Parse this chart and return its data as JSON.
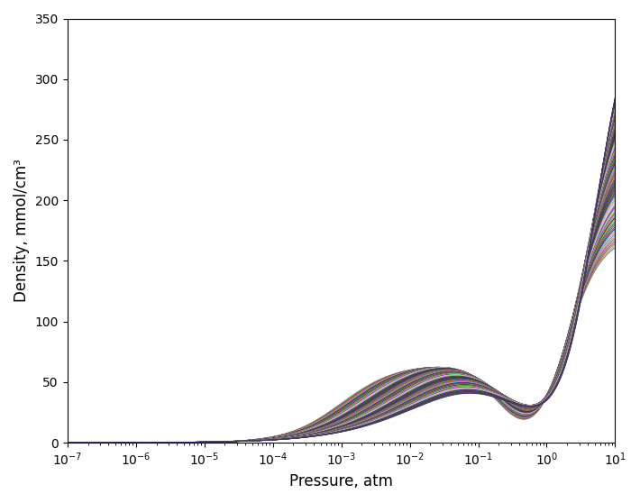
{
  "title": "",
  "xlabel": "Pressure, atm",
  "ylabel": "Density, mmol/cm³",
  "xlim_log": [
    -7,
    1
  ],
  "ylim": [
    0,
    350
  ],
  "yticks": [
    0,
    50,
    100,
    150,
    200,
    250,
    300,
    350
  ],
  "n_curves": 120,
  "background_color": "#ffffff",
  "linewidth": 0.7,
  "figsize": [
    7.1,
    5.58
  ],
  "dpi": 100
}
